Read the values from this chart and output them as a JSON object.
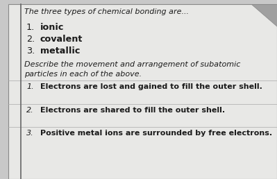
{
  "bg_color": "#c8c8c8",
  "card_color": "#e8e8e6",
  "header_text": "The three types of chemical bonding are...",
  "header_fontsize": 8.0,
  "list1": [
    {
      "num": "1.",
      "text": "ionic"
    },
    {
      "num": "2.",
      "text": "covalent"
    },
    {
      "num": "3.",
      "text": "metallic"
    }
  ],
  "list1_fontsize": 9.2,
  "subheader_line1": "Describe the movement and arrangement of subatomic",
  "subheader_line2": "particles in each of the above.",
  "subheader_fontsize": 8.0,
  "list2": [
    {
      "num": "1.",
      "text": "Electrons are lost and gained to fill the outer shell."
    },
    {
      "num": "2.",
      "text": "Electrons are shared to fill the outer shell."
    },
    {
      "num": "3.",
      "text": "Positive metal ions are surrounded by free electrons."
    }
  ],
  "list2_fontsize": 8.0,
  "text_color": "#1a1a1a",
  "border_left_color": "#666666",
  "border_line_color": "#888888",
  "corner_tab_color": "#a0a0a0"
}
